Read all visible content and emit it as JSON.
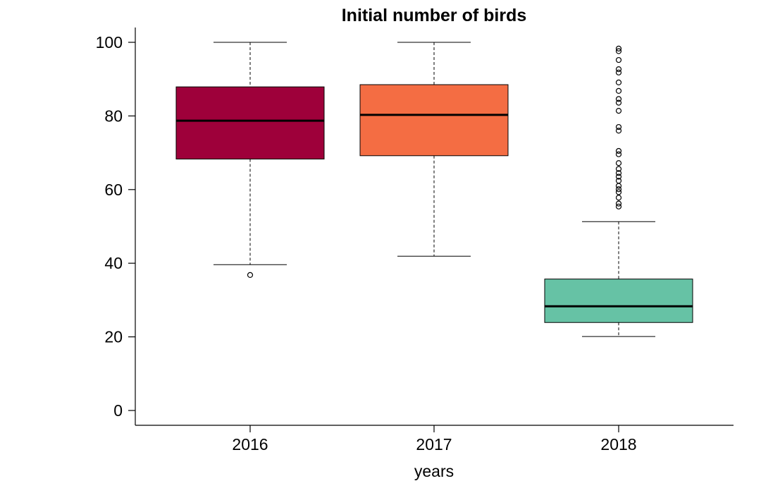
{
  "chart_data": {
    "type": "box",
    "title": "Initial number of birds",
    "xlabel": "years",
    "ylabel": "",
    "ylim": [
      0,
      100
    ],
    "yticks": [
      "0",
      "20",
      "40",
      "60",
      "80",
      "100"
    ],
    "grid": false,
    "legend": "none",
    "categories": [
      "2016",
      "2017",
      "2018"
    ],
    "boxes": [
      {
        "category": "2016",
        "color": "#9e003a",
        "whisker_low": 39.6,
        "q1": 68.3,
        "median": 78.7,
        "q3": 87.9,
        "whisker_high": 100,
        "outliers": [
          36.8
        ]
      },
      {
        "category": "2017",
        "color": "#f46d43",
        "whisker_low": 41.9,
        "q1": 69.2,
        "median": 80.3,
        "q3": 88.5,
        "whisker_high": 100,
        "outliers": []
      },
      {
        "category": "2018",
        "color": "#66c2a5",
        "whisker_low": 20.1,
        "q1": 23.9,
        "median": 28.3,
        "q3": 35.7,
        "whisker_high": 51.3,
        "outliers": [
          55.4,
          56.2,
          57.8,
          59.3,
          60.1,
          61.0,
          62.4,
          63.5,
          64.5,
          65.6,
          67.2,
          69.6,
          70.5,
          76.0,
          77.0,
          81.4,
          83.6,
          84.6,
          86.8,
          89.1,
          91.8,
          92.7,
          95.2,
          97.6,
          98.3
        ]
      }
    ]
  }
}
